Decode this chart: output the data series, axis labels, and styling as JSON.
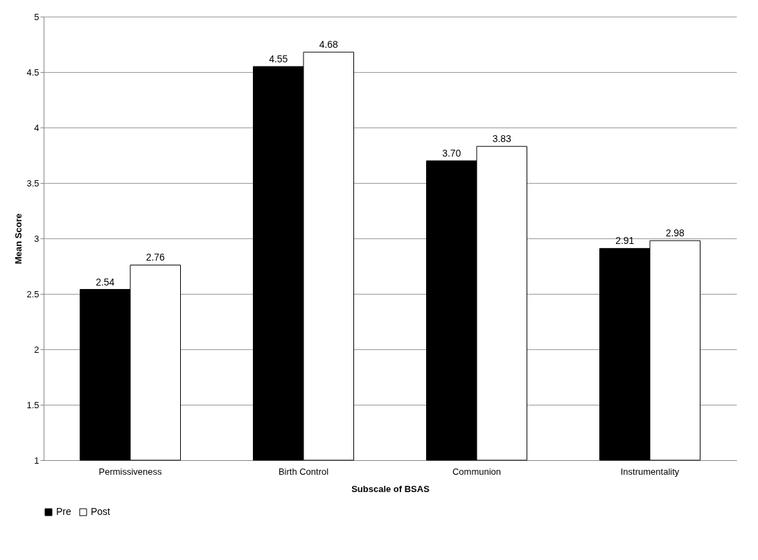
{
  "chart_data": {
    "type": "bar",
    "xlabel": "Subscale of BSAS",
    "ylabel": "Mean Score",
    "categories": [
      "Permissiveness",
      "Birth Control",
      "Communion",
      "Instrumentality"
    ],
    "series": [
      {
        "name": "Pre",
        "color": "#000000",
        "values": [
          2.54,
          4.55,
          3.7,
          2.91
        ],
        "value_labels": [
          "2.54",
          "4.55",
          "3.70",
          "2.91"
        ]
      },
      {
        "name": "Post",
        "color": "#ffffff",
        "values": [
          2.76,
          4.68,
          3.83,
          2.98
        ],
        "value_labels": [
          "2.76",
          "4.68",
          "3.83",
          "2.98"
        ]
      }
    ],
    "ylim": [
      1,
      5
    ],
    "yticks": [
      1,
      1.5,
      2,
      2.5,
      3,
      3.5,
      4,
      4.5,
      5
    ],
    "grid": "y",
    "legend": "bottom"
  }
}
